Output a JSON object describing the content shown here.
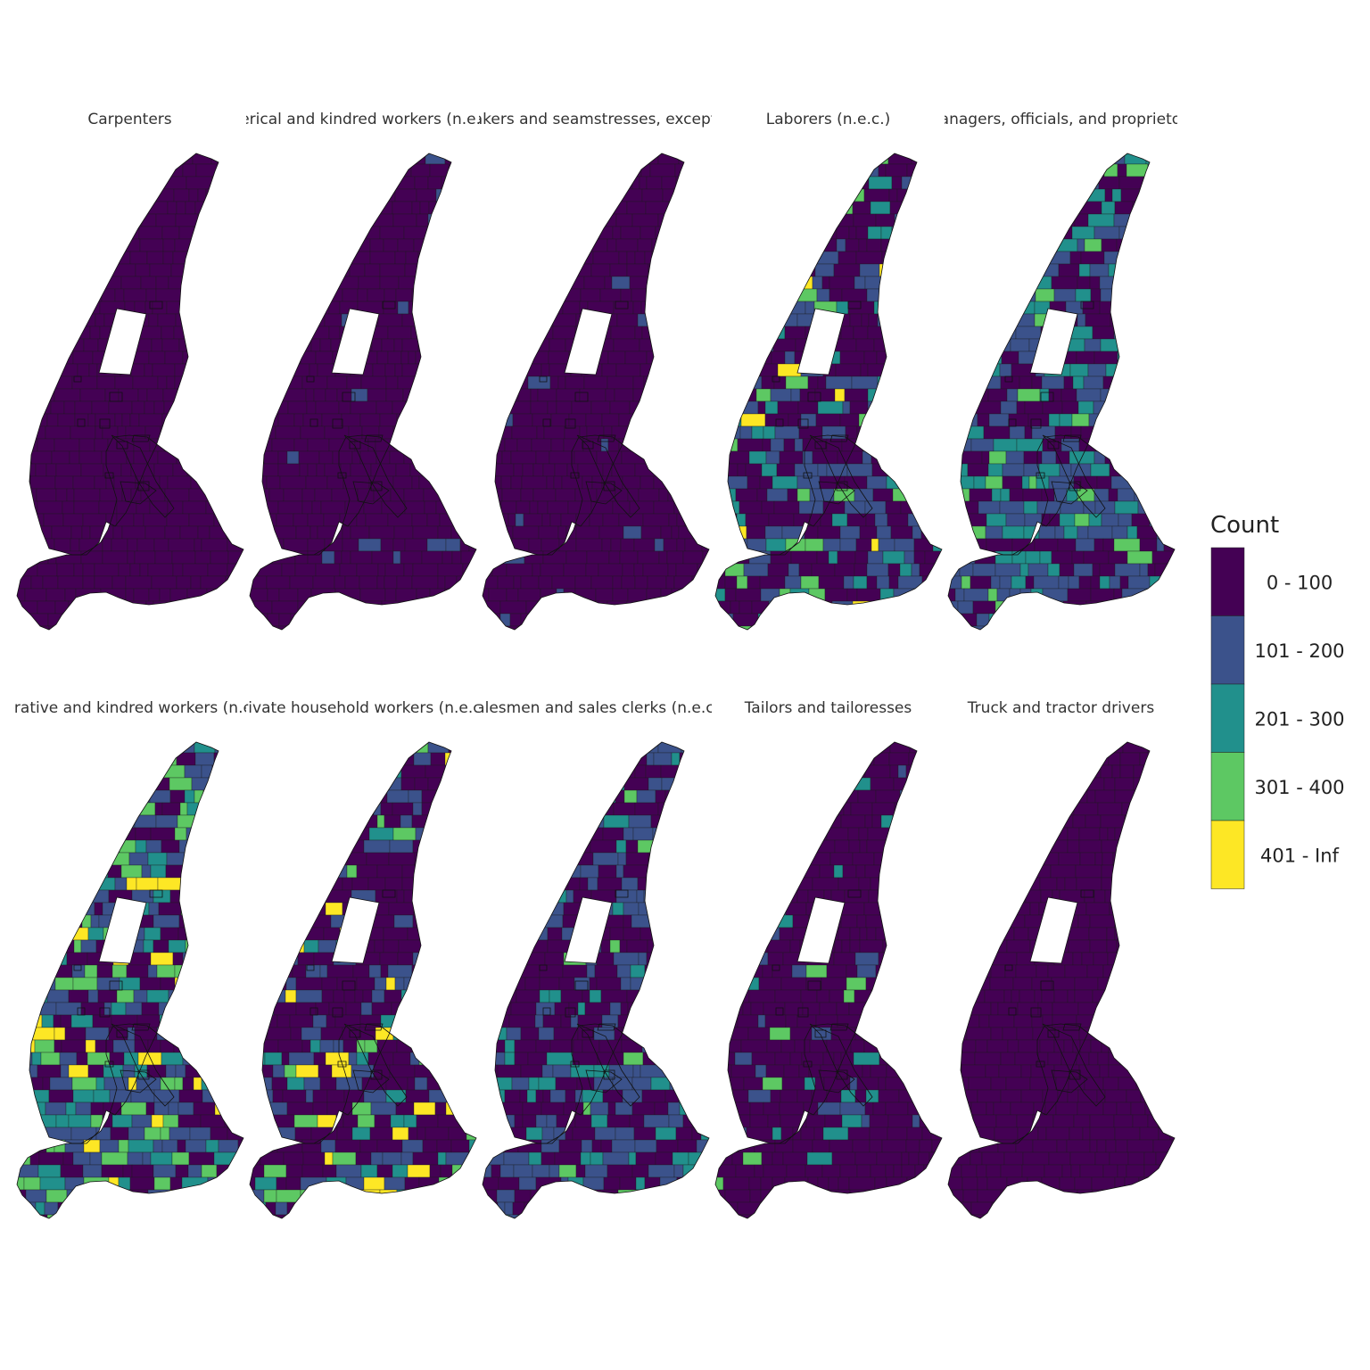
{
  "panels": [
    {
      "title": "Carpenters",
      "dist": {
        "0-100": 1.0
      }
    },
    {
      "title": "Clerical and kindred workers (n.e.c.)",
      "dist": {
        "0-100": 0.96,
        "101-200": 0.04
      }
    },
    {
      "title": "Dressmakers and seamstresses, except factory",
      "dist": {
        "0-100": 0.96,
        "101-200": 0.04
      }
    },
    {
      "title": "Laborers (n.e.c.)",
      "dist": {
        "0-100": 0.55,
        "101-200": 0.25,
        "201-300": 0.1,
        "301-400": 0.06,
        "401-Inf": 0.04
      }
    },
    {
      "title": "Managers, officials, and proprietors",
      "dist": {
        "0-100": 0.35,
        "101-200": 0.35,
        "201-300": 0.22,
        "301-400": 0.08
      }
    },
    {
      "title": "Operative and kindred workers (n.e.c.)",
      "dist": {
        "0-100": 0.3,
        "101-200": 0.3,
        "201-300": 0.15,
        "301-400": 0.18,
        "401-Inf": 0.07
      }
    },
    {
      "title": "Private household workers (n.e.c.)",
      "dist": {
        "0-100": 0.55,
        "101-200": 0.22,
        "201-300": 0.1,
        "301-400": 0.08,
        "401-Inf": 0.05
      }
    },
    {
      "title": "Salesmen and sales clerks (n.e.c.)",
      "dist": {
        "0-100": 0.5,
        "101-200": 0.32,
        "201-300": 0.15,
        "301-400": 0.03
      }
    },
    {
      "title": "Tailors and tailoresses",
      "dist": {
        "0-100": 0.9,
        "101-200": 0.04,
        "201-300": 0.04,
        "301-400": 0.02
      }
    },
    {
      "title": "Truck and tractor drivers",
      "dist": {
        "0-100": 1.0
      }
    }
  ],
  "legend": {
    "title": "Count",
    "items": [
      {
        "label": "0 - 100",
        "color": "#440154"
      },
      {
        "label": "101 - 200",
        "color": "#3B528B"
      },
      {
        "label": "201 - 300",
        "color": "#21908C"
      },
      {
        "label": "301 - 400",
        "color": "#5DC863"
      },
      {
        "label": "401 - Inf",
        "color": "#FDE725"
      }
    ]
  }
}
